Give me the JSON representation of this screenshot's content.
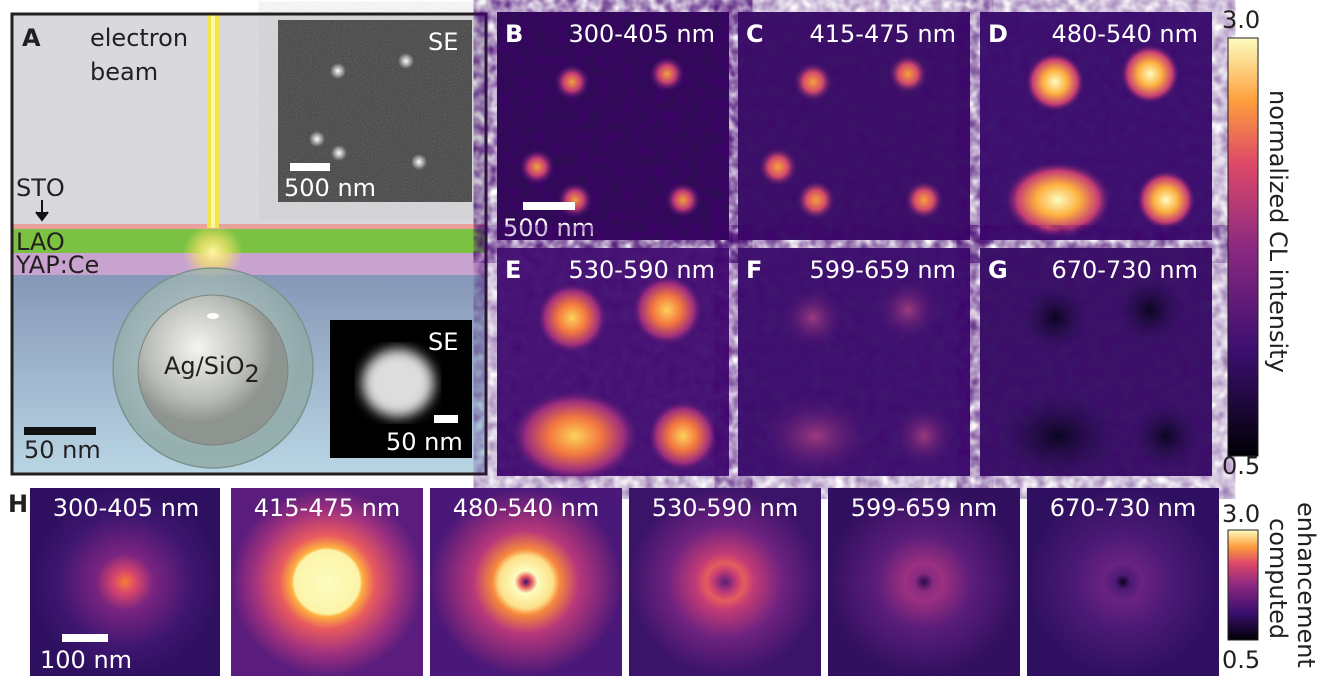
{
  "panel_a": {
    "label": "A",
    "beam_label": [
      "electron",
      "beam"
    ],
    "layers": [
      "STO",
      "LAO",
      "YAP:Ce"
    ],
    "particle": {
      "text": "Ag/SiO",
      "subscript": "2"
    },
    "scale_bar": "50 nm",
    "inset_top": {
      "label": "SE",
      "scale_bar": "500 nm"
    },
    "inset_bottom": {
      "label": "SE",
      "scale_bar": "50 nm"
    }
  },
  "cl_maps": [
    {
      "label": "B",
      "range": "300-405 nm",
      "scale_bar": "500 nm"
    },
    {
      "label": "C",
      "range": "415-475 nm"
    },
    {
      "label": "D",
      "range": "480-540 nm"
    },
    {
      "label": "E",
      "range": "530-590 nm"
    },
    {
      "label": "F",
      "range": "599-659 nm"
    },
    {
      "label": "G",
      "range": "670-730 nm"
    }
  ],
  "cl_colorbar": {
    "max": "3.0",
    "min": "0.5",
    "title": "normalized CL intensity"
  },
  "panel_h": {
    "label": "H",
    "maps": [
      "300-405 nm",
      "415-475 nm",
      "480-540 nm",
      "530-590 nm",
      "599-659 nm",
      "670-730 nm"
    ],
    "scale_bar": "100 nm"
  },
  "h_colorbar": {
    "max": "3.0",
    "min": "0.5",
    "title": [
      "computed",
      "enhancement"
    ]
  }
}
